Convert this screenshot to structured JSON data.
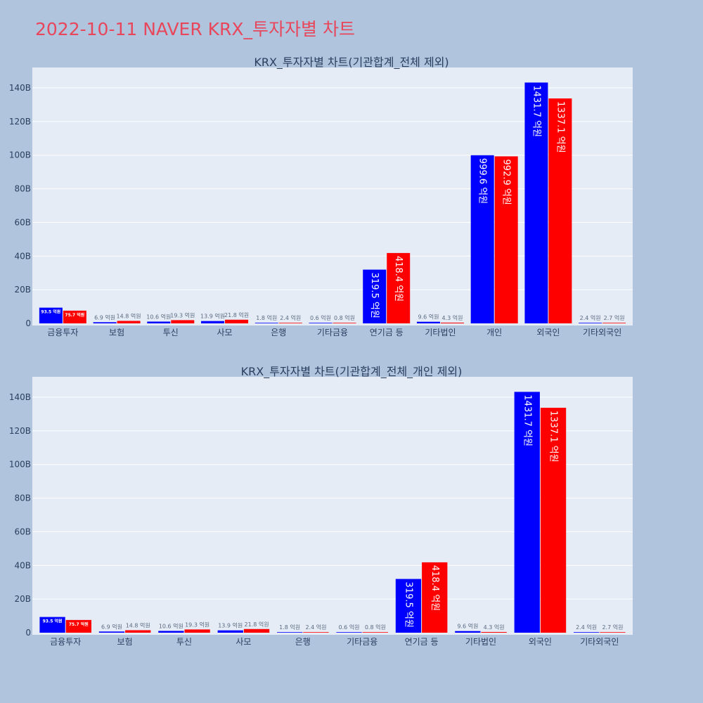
{
  "title": "2022-10-11 NAVER KRX_투자자별 차트",
  "colors": {
    "buy": "#0000ff",
    "sell": "#ff0000",
    "plot_bg": "#e5ecf6",
    "page_bg": "#b0c4de",
    "title": "#e8465a"
  },
  "chart_data": [
    {
      "type": "bar",
      "title": "KRX_투자자별 차트(기관합계_전체 제외)",
      "categories": [
        "금융투자",
        "보험",
        "투신",
        "사모",
        "은행",
        "기타금융",
        "연기금 등",
        "기타법인",
        "개인",
        "외국인",
        "기타외국인"
      ],
      "series": [
        {
          "values": [
            9.35,
            0.69,
            1.06,
            1.39,
            0.18,
            0.06,
            31.95,
            0.96,
            99.96,
            143.17,
            0.24
          ],
          "labels": [
            "93.5 억원",
            "6.9 억원",
            "10.6 억원",
            "13.9 억원",
            "1.8 억원",
            "0.6 억원",
            "319.5 억원",
            "9.6 억원",
            "999.6 억원",
            "1431.7 억원",
            "2.4 억원"
          ]
        },
        {
          "values": [
            7.57,
            1.48,
            1.93,
            2.18,
            0.24,
            0.08,
            41.84,
            0.43,
            99.29,
            133.71,
            0.27
          ],
          "labels": [
            "75.7 억원",
            "14.8 억원",
            "19.3 억원",
            "21.8 억원",
            "2.4 억원",
            "0.8 억원",
            "418.4 억원",
            "4.3 억원",
            "992.9 억원",
            "1337.1 억원",
            "2.7 억원"
          ]
        }
      ],
      "yticks": [
        "0",
        "20B",
        "40B",
        "60B",
        "80B",
        "100B",
        "120B",
        "140B"
      ],
      "ylim": [
        0,
        150.7
      ]
    },
    {
      "type": "bar",
      "title": "KRX_투자자별 차트(기관합계_전체_개인 제외)",
      "categories": [
        "금융투자",
        "보험",
        "투신",
        "사모",
        "은행",
        "기타금융",
        "연기금 등",
        "기타법인",
        "외국인",
        "기타외국인"
      ],
      "series": [
        {
          "values": [
            9.35,
            0.69,
            1.06,
            1.39,
            0.18,
            0.06,
            31.95,
            0.96,
            143.17,
            0.24
          ],
          "labels": [
            "93.5 억원",
            "6.9 억원",
            "10.6 억원",
            "13.9 억원",
            "1.8 억원",
            "0.6 억원",
            "319.5 억원",
            "9.6 억원",
            "1431.7 억원",
            "2.4 억원"
          ]
        },
        {
          "values": [
            7.57,
            1.48,
            1.93,
            2.18,
            0.24,
            0.08,
            41.84,
            0.43,
            133.71,
            0.27
          ],
          "labels": [
            "75.7 억원",
            "14.8 억원",
            "19.3 억원",
            "21.8 억원",
            "2.4 억원",
            "0.8 억원",
            "418.4 억원",
            "4.3 억원",
            "1337.1 억원",
            "2.7 억원"
          ]
        }
      ],
      "yticks": [
        "0",
        "20B",
        "40B",
        "60B",
        "80B",
        "100B",
        "120B",
        "140B"
      ],
      "ylim": [
        0,
        150.7
      ]
    }
  ]
}
